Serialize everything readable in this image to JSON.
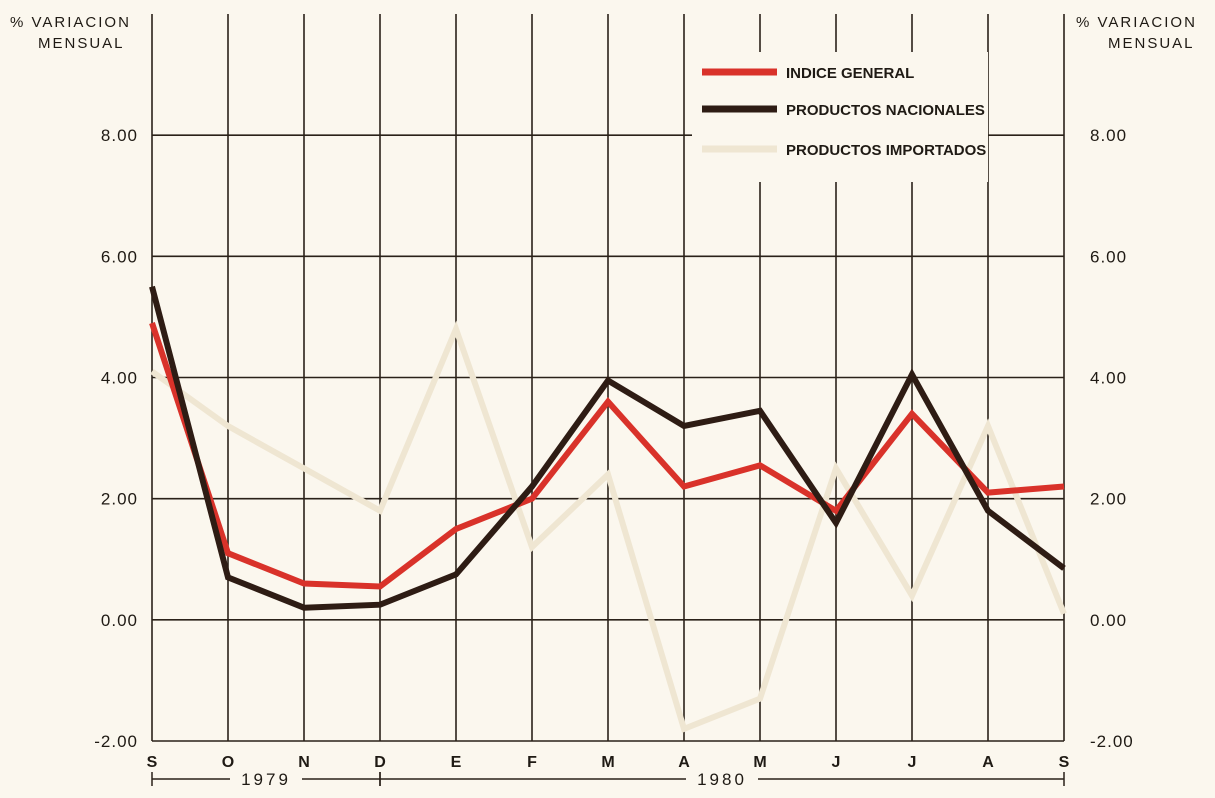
{
  "chart_data": {
    "type": "line",
    "title": "",
    "y_axis_title_left": [
      "% VARIACION",
      "MENSUAL"
    ],
    "y_axis_title_right": [
      "% VARIACION",
      "MENSUAL"
    ],
    "ylim": [
      -2.0,
      10.0
    ],
    "y_ticks": [
      8.0,
      6.0,
      4.0,
      2.0,
      0.0,
      -2.0
    ],
    "y_tick_labels": [
      "8.00",
      "6.00",
      "4.00",
      "2.00",
      "0.00",
      "-2.00"
    ],
    "categories": [
      "S",
      "O",
      "N",
      "D",
      "E",
      "F",
      "M",
      "A",
      "M",
      "J",
      "J",
      "A",
      "S"
    ],
    "year_groups": [
      {
        "label": "1979",
        "from": 0,
        "to": 3
      },
      {
        "label": "1980",
        "from": 3,
        "to": 12
      }
    ],
    "grid": true,
    "legend_position": "top-right",
    "series": [
      {
        "name": "PRODUCTOS IMPORTADOS",
        "color": "#efe6d2",
        "values": [
          4.1,
          3.2,
          2.5,
          1.8,
          4.8,
          1.2,
          2.4,
          -1.8,
          -1.3,
          2.5,
          0.4,
          3.2,
          0.1
        ]
      },
      {
        "name": "INDICE GENERAL",
        "color": "#d9322a",
        "values": [
          4.9,
          1.1,
          0.6,
          0.55,
          1.5,
          2.0,
          3.6,
          2.2,
          2.55,
          1.8,
          3.4,
          2.1,
          2.2
        ]
      },
      {
        "name": "PRODUCTOS NACIONALES",
        "color": "#2e1c14",
        "values": [
          5.5,
          0.7,
          0.2,
          0.25,
          0.75,
          2.2,
          3.95,
          3.2,
          3.45,
          1.6,
          4.05,
          1.8,
          0.85
        ]
      }
    ],
    "legend_order": [
      "INDICE GENERAL",
      "PRODUCTOS NACIONALES",
      "PRODUCTOS IMPORTADOS"
    ]
  }
}
